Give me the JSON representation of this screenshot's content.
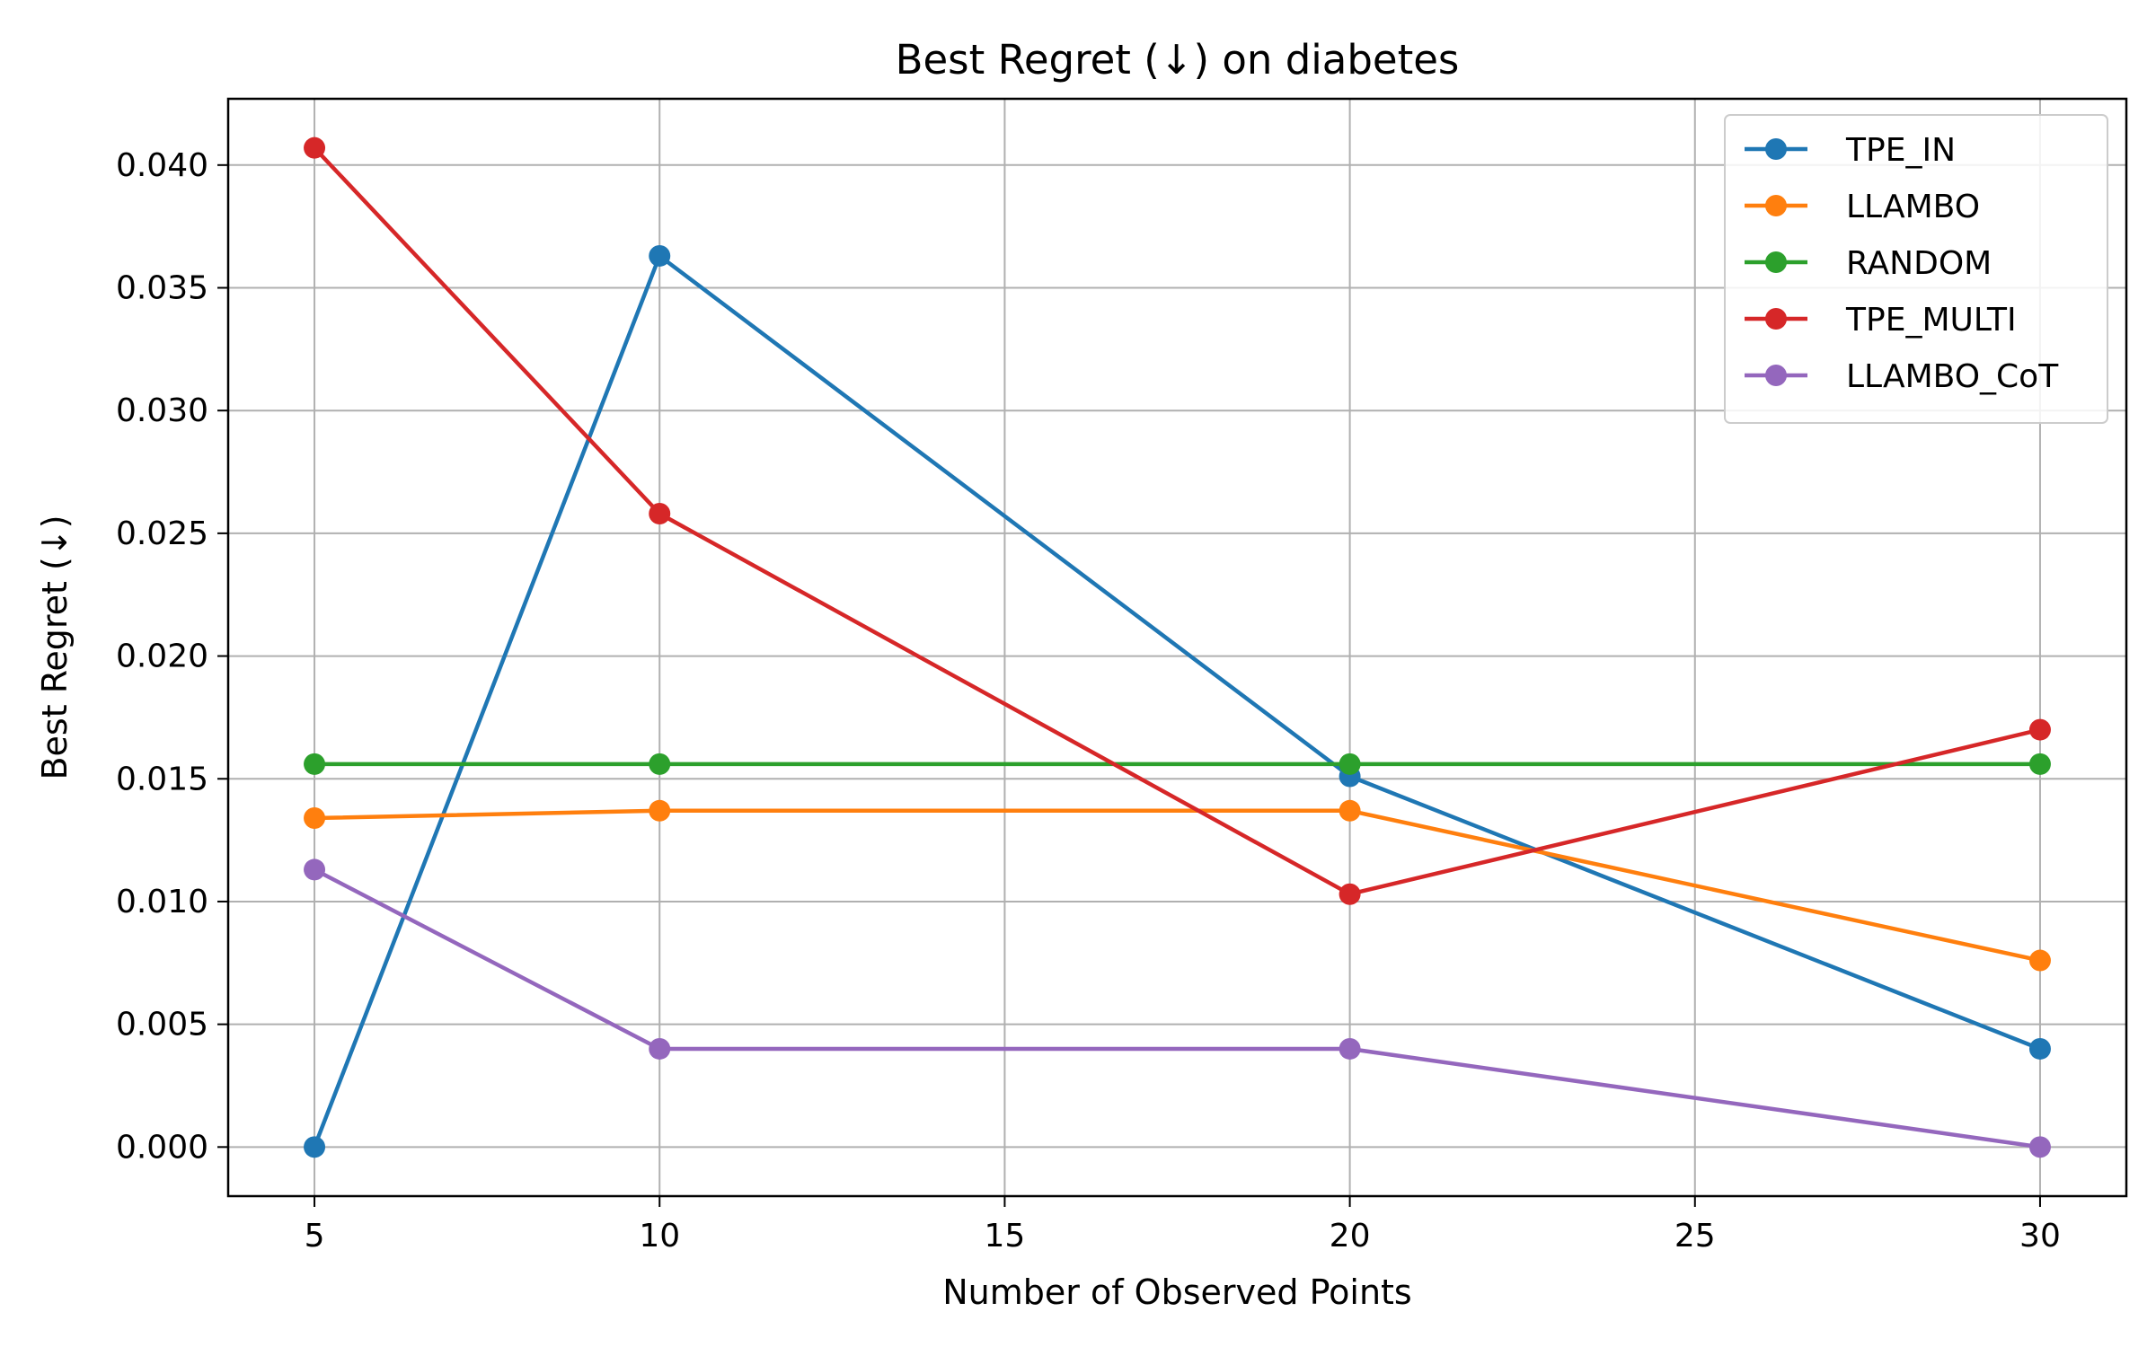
{
  "chart_data": {
    "type": "line",
    "title": "Best Regret (↓) on diabetes",
    "xlabel": "Number of Observed Points",
    "ylabel": "Best Regret (↓)",
    "x": [
      5,
      10,
      20,
      30
    ],
    "xlim": [
      3.75,
      31.25
    ],
    "ylim": [
      -0.002,
      0.0427
    ],
    "xticks": [
      5,
      10,
      15,
      20,
      25,
      30
    ],
    "yticks": [
      0.0,
      0.005,
      0.01,
      0.015,
      0.02,
      0.025,
      0.03,
      0.035,
      0.04
    ],
    "xtick_labels": [
      "5",
      "10",
      "15",
      "20",
      "25",
      "30"
    ],
    "ytick_labels": [
      "0.000",
      "0.005",
      "0.010",
      "0.015",
      "0.020",
      "0.025",
      "0.030",
      "0.035",
      "0.040"
    ],
    "grid": true,
    "legend_position": "top-right",
    "series": [
      {
        "name": "TPE_IN",
        "color": "#1f77b4",
        "values": [
          0.0,
          0.0363,
          0.0151,
          0.004
        ]
      },
      {
        "name": "LLAMBO",
        "color": "#ff7f0e",
        "values": [
          0.0134,
          0.0137,
          0.0137,
          0.0076
        ]
      },
      {
        "name": "RANDOM",
        "color": "#2ca02c",
        "values": [
          0.0156,
          0.0156,
          0.0156,
          0.0156
        ]
      },
      {
        "name": "TPE_MULTI",
        "color": "#d62728",
        "values": [
          0.0407,
          0.0258,
          0.0103,
          0.017
        ]
      },
      {
        "name": "LLAMBO_CoT",
        "color": "#9467bd",
        "values": [
          0.0113,
          0.004,
          0.004,
          0.0
        ]
      }
    ]
  }
}
